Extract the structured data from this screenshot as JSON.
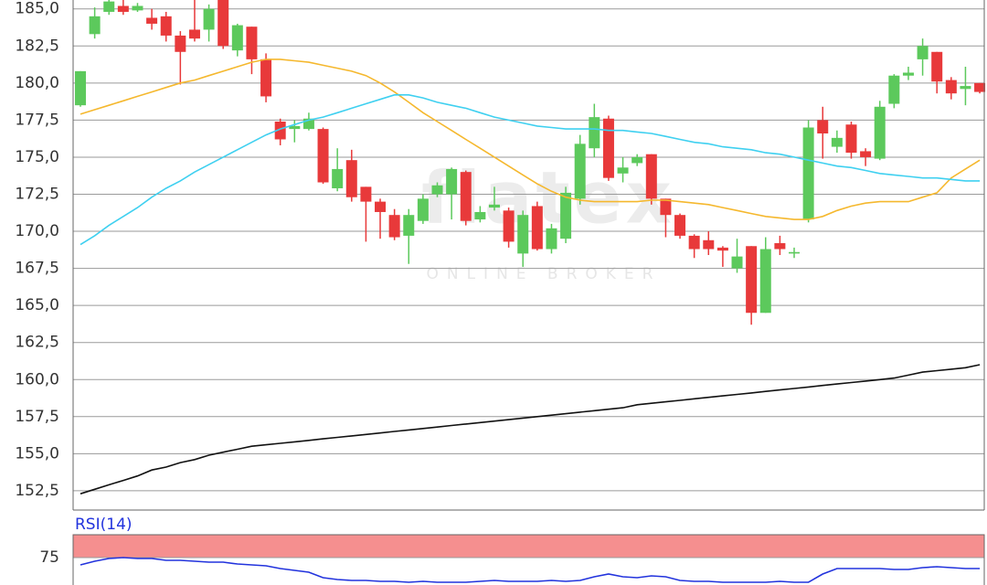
{
  "chart_data": [
    {
      "type": "candlestick",
      "watermark": "flatex",
      "watermark_sub": "ONLINE BROKER",
      "up_color": "#5cc95c",
      "down_color": "#e8393a",
      "ylim": [
        151.2,
        185.6
      ],
      "yticks": [
        {
          "value": 152.5,
          "label": "152,5"
        },
        {
          "value": 155,
          "label": "155,0"
        },
        {
          "value": 157.5,
          "label": "157,5"
        },
        {
          "value": 160,
          "label": "160,0"
        },
        {
          "value": 162.5,
          "label": "162,5"
        },
        {
          "value": 165,
          "label": "165,0"
        },
        {
          "value": 167.5,
          "label": "167,5"
        },
        {
          "value": 170,
          "label": "170,0"
        },
        {
          "value": 172.5,
          "label": "172,5"
        },
        {
          "value": 175,
          "label": "175,0"
        },
        {
          "value": 177.5,
          "label": "177,5"
        },
        {
          "value": 180,
          "label": "180,0"
        },
        {
          "value": 182.5,
          "label": "182,5"
        },
        {
          "value": 185,
          "label": "185,0"
        }
      ],
      "grid": true,
      "open": [
        178.5,
        183.3,
        184.8,
        185.2,
        184.9,
        184.4,
        184.5,
        183.2,
        183.6,
        183.6,
        185.6,
        182.2,
        183.8,
        181.6,
        177.4,
        176.9,
        176.9,
        176.9,
        172.9,
        174.8,
        173.0,
        172.0,
        171.1,
        169.7,
        170.7,
        172.5,
        172.5,
        174.0,
        170.8,
        171.6,
        171.4,
        168.5,
        171.7,
        168.8,
        169.5,
        172.2,
        175.6,
        177.6,
        173.9,
        174.6,
        175.2,
        172.2,
        171.1,
        169.7,
        169.4,
        168.9,
        167.5,
        169.0,
        164.5,
        169.2,
        168.5,
        170.8,
        177.5,
        175.7,
        177.2,
        175.4,
        174.9,
        178.6,
        180.5,
        181.6,
        182.1,
        180.2,
        179.6,
        180.0
      ],
      "high": [
        180.8,
        185.1,
        185.6,
        185.6,
        185.4,
        185.0,
        184.8,
        183.5,
        185.6,
        185.3,
        185.6,
        184.0,
        183.8,
        182.0,
        177.6,
        177.5,
        178.0,
        177.0,
        175.6,
        175.5,
        173.0,
        172.2,
        171.5,
        171.5,
        172.5,
        173.3,
        174.3,
        174.1,
        171.7,
        173.0,
        171.6,
        171.4,
        172.0,
        170.5,
        173.0,
        176.5,
        178.6,
        177.8,
        175.0,
        175.2,
        175.2,
        172.2,
        171.2,
        169.8,
        170.0,
        169.0,
        169.5,
        169.0,
        169.6,
        169.7,
        168.9,
        177.5,
        178.4,
        176.8,
        177.4,
        175.6,
        178.8,
        180.6,
        181.1,
        183.0,
        182.1,
        180.4,
        181.1,
        180.0
      ],
      "low": [
        178.4,
        183.0,
        184.6,
        184.6,
        184.8,
        183.6,
        182.8,
        179.9,
        182.8,
        182.8,
        182.3,
        181.8,
        180.6,
        178.7,
        175.8,
        176.0,
        176.8,
        173.2,
        172.7,
        172.0,
        169.3,
        169.5,
        169.4,
        167.8,
        170.5,
        172.3,
        170.8,
        170.4,
        170.6,
        171.4,
        168.9,
        167.6,
        168.7,
        168.5,
        169.2,
        171.8,
        175.0,
        173.4,
        173.3,
        174.4,
        171.8,
        169.6,
        169.5,
        168.2,
        168.4,
        167.6,
        167.2,
        163.7,
        164.5,
        168.4,
        168.2,
        170.6,
        174.9,
        175.3,
        174.9,
        174.4,
        174.8,
        178.3,
        180.2,
        180.5,
        179.3,
        178.9,
        178.5,
        179.3
      ],
      "close": [
        180.8,
        184.5,
        185.5,
        184.8,
        185.2,
        184.0,
        183.2,
        182.1,
        183.0,
        185.0,
        182.5,
        183.9,
        181.6,
        179.1,
        176.2,
        177.1,
        177.6,
        173.3,
        174.2,
        172.3,
        172.0,
        171.3,
        169.6,
        171.1,
        172.2,
        173.1,
        174.2,
        170.7,
        171.3,
        171.8,
        169.3,
        171.1,
        168.8,
        170.2,
        172.6,
        175.9,
        177.7,
        173.6,
        174.3,
        175.0,
        172.2,
        171.1,
        169.7,
        168.8,
        168.8,
        168.7,
        168.3,
        164.5,
        168.8,
        168.8,
        168.6,
        177.0,
        176.6,
        176.3,
        175.3,
        175.0,
        178.4,
        180.5,
        180.7,
        182.5,
        180.1,
        179.3,
        179.8,
        179.4
      ],
      "series": [
        {
          "color": "#f5b82e",
          "values": [
            177.9,
            178.2,
            178.5,
            178.8,
            179.1,
            179.4,
            179.7,
            180.0,
            180.2,
            180.5,
            180.8,
            181.1,
            181.4,
            181.6,
            181.6,
            181.5,
            181.4,
            181.2,
            181.0,
            180.8,
            180.5,
            180.0,
            179.4,
            178.7,
            178.0,
            177.4,
            176.8,
            176.2,
            175.6,
            175.0,
            174.4,
            173.8,
            173.2,
            172.7,
            172.3,
            172.1,
            172.0,
            172.0,
            172.0,
            172.0,
            172.1,
            172.1,
            172.0,
            171.9,
            171.8,
            171.6,
            171.4,
            171.2,
            171.0,
            170.9,
            170.8,
            170.8,
            171.0,
            171.4,
            171.7,
            171.9,
            172.0,
            172.0,
            172.0,
            172.3,
            172.6,
            173.6,
            174.2,
            174.8
          ]
        },
        {
          "color": "#3fd0f0",
          "values": [
            169.1,
            169.7,
            170.4,
            171.0,
            171.6,
            172.3,
            172.9,
            173.4,
            174.0,
            174.5,
            175.0,
            175.5,
            176.0,
            176.5,
            176.9,
            177.2,
            177.5,
            177.7,
            178.0,
            178.3,
            178.6,
            178.9,
            179.2,
            179.2,
            179.0,
            178.7,
            178.5,
            178.3,
            178.0,
            177.7,
            177.5,
            177.3,
            177.1,
            177.0,
            176.9,
            176.9,
            176.9,
            176.8,
            176.8,
            176.7,
            176.6,
            176.4,
            176.2,
            176.0,
            175.9,
            175.7,
            175.6,
            175.5,
            175.3,
            175.2,
            175.0,
            174.8,
            174.6,
            174.4,
            174.3,
            174.1,
            173.9,
            173.8,
            173.7,
            173.6,
            173.6,
            173.5,
            173.4,
            173.4
          ]
        },
        {
          "color": "#111111",
          "values": [
            152.3,
            152.6,
            152.9,
            153.2,
            153.5,
            153.9,
            154.1,
            154.4,
            154.6,
            154.9,
            155.1,
            155.3,
            155.5,
            155.6,
            155.7,
            155.8,
            155.9,
            156.0,
            156.1,
            156.2,
            156.3,
            156.4,
            156.5,
            156.6,
            156.7,
            156.8,
            156.9,
            157.0,
            157.1,
            157.2,
            157.3,
            157.4,
            157.5,
            157.6,
            157.7,
            157.8,
            157.9,
            158.0,
            158.1,
            158.3,
            158.4,
            158.5,
            158.6,
            158.7,
            158.8,
            158.9,
            159.0,
            159.1,
            159.2,
            159.3,
            159.4,
            159.5,
            159.6,
            159.7,
            159.8,
            159.9,
            160.0,
            160.1,
            160.3,
            160.5,
            160.6,
            160.7,
            160.8,
            161.0
          ]
        }
      ]
    },
    {
      "type": "line",
      "title": "RSI(14)",
      "ylim": [
        45,
        100
      ],
      "yticks": [
        75
      ],
      "band": [
        75,
        100
      ],
      "band_color": "#f58f8f",
      "series": [
        {
          "color": "#2233dd",
          "values": [
            67,
            71,
            74,
            75,
            74,
            74,
            72,
            72,
            71,
            70,
            70,
            68,
            67,
            66,
            63,
            61,
            59,
            53,
            51,
            50,
            50,
            49,
            49,
            48,
            49,
            48,
            48,
            48,
            49,
            50,
            49,
            49,
            49,
            50,
            49,
            50,
            54,
            57,
            54,
            53,
            55,
            54,
            50,
            49,
            49,
            48,
            48,
            48,
            48,
            49,
            48,
            48,
            57,
            63,
            63,
            63,
            63,
            62,
            62,
            64,
            65,
            64,
            63,
            63
          ]
        }
      ]
    }
  ]
}
